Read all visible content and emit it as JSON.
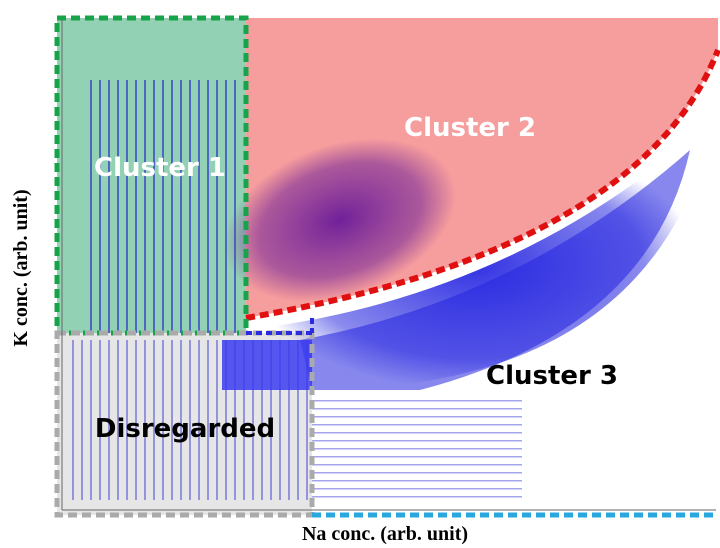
{
  "chart_data": {
    "type": "scatter",
    "xlabel": "Na conc. (arb. unit)",
    "ylabel": "K conc. (arb. unit)",
    "annotations": [
      "Cluster 1",
      "Cluster 2",
      "Cluster 3",
      "Disregarded"
    ]
  }
}
